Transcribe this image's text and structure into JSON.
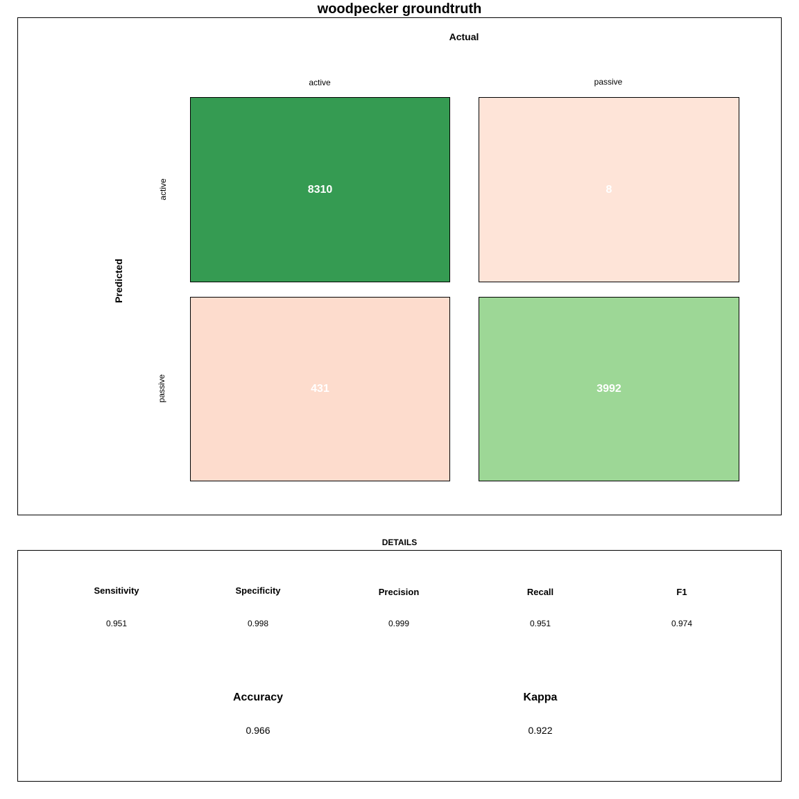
{
  "title": "woodpecker groundtruth",
  "chart_data": {
    "type": "heatmap",
    "x_axis_label": "Actual",
    "y_axis_label": "Predicted",
    "columns": [
      "active",
      "passive"
    ],
    "rows": [
      "active",
      "passive"
    ],
    "cells": [
      {
        "row": "active",
        "col": "active",
        "value": "8310",
        "color": "#359b52"
      },
      {
        "row": "active",
        "col": "passive",
        "value": "8",
        "color": "#fee4d8"
      },
      {
        "row": "passive",
        "col": "active",
        "value": "431",
        "color": "#fddccd"
      },
      {
        "row": "passive",
        "col": "passive",
        "value": "3992",
        "color": "#9dd796"
      }
    ]
  },
  "details": {
    "heading": "DETAILS",
    "metrics": [
      {
        "name": "Sensitivity",
        "value": "0.951"
      },
      {
        "name": "Specificity",
        "value": "0.998"
      },
      {
        "name": "Precision",
        "value": "0.999"
      },
      {
        "name": "Recall",
        "value": "0.951"
      },
      {
        "name": "F1",
        "value": "0.974"
      }
    ],
    "summary": [
      {
        "name": "Accuracy",
        "value": "0.966"
      },
      {
        "name": "Kappa",
        "value": "0.922"
      }
    ]
  }
}
